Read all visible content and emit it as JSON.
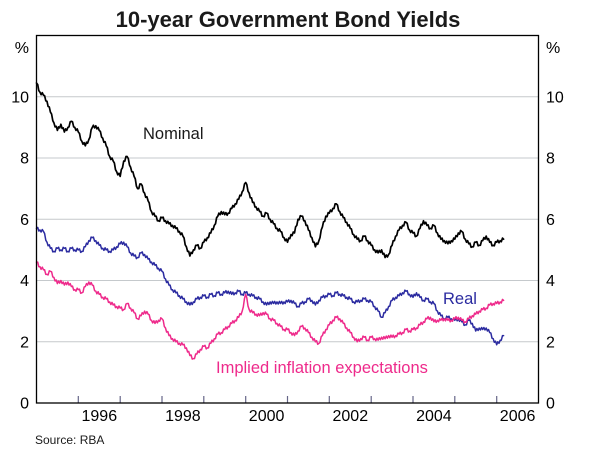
{
  "title": "10-year Government Bond Yields",
  "source": "Source: RBA",
  "axis": {
    "unit_left": "%",
    "unit_right": "%"
  },
  "colors": {
    "nominal": "#000000",
    "real": "#2b2ba0",
    "implied": "#ee2a8b",
    "grid": "#c5c9cc",
    "frame": "#000000",
    "tick": "#666688"
  },
  "chart_data": {
    "type": "line",
    "title": "10-year Government Bond Yields",
    "ylabel": "%",
    "ylim": [
      0,
      12
    ],
    "yticks": [
      0,
      2,
      4,
      6,
      8,
      10
    ],
    "xlim": [
      1995,
      2007
    ],
    "xtick_years": [
      1996,
      1997,
      1998,
      1999,
      2000,
      2001,
      2002,
      2003,
      2004,
      2005,
      2006
    ],
    "xtick_label_years": [
      1996,
      1998,
      2000,
      2002,
      2004,
      2006
    ],
    "xtick_labels": [
      "1996",
      "1998",
      "2000",
      "2002",
      "2004",
      "2006"
    ],
    "grid": true,
    "legend": "inline-labels",
    "x_start": 1995.0,
    "x_step": 0.0833333,
    "series": [
      {
        "name": "Nominal",
        "color": "#000000",
        "values": [
          10.45,
          10.15,
          10.05,
          9.85,
          9.5,
          9.15,
          8.9,
          9.1,
          8.85,
          9.0,
          9.2,
          9.0,
          8.85,
          8.55,
          8.4,
          8.6,
          9.0,
          9.05,
          8.9,
          8.65,
          8.4,
          8.05,
          7.9,
          7.55,
          7.4,
          7.9,
          8.05,
          7.7,
          7.4,
          7.0,
          7.15,
          6.85,
          6.6,
          6.25,
          6.1,
          5.95,
          6.05,
          5.95,
          5.85,
          5.8,
          5.7,
          5.6,
          5.45,
          5.1,
          4.8,
          5.0,
          5.15,
          5.05,
          5.25,
          5.4,
          5.55,
          5.8,
          6.1,
          6.25,
          6.15,
          6.2,
          6.35,
          6.5,
          6.65,
          6.9,
          7.2,
          6.85,
          6.55,
          6.4,
          6.25,
          6.1,
          6.2,
          6.0,
          5.85,
          5.7,
          5.6,
          5.4,
          5.25,
          5.5,
          5.55,
          6.0,
          6.1,
          5.95,
          5.65,
          5.4,
          5.1,
          5.3,
          5.75,
          6.1,
          6.2,
          6.35,
          6.5,
          6.25,
          6.05,
          5.9,
          5.7,
          5.5,
          5.35,
          5.3,
          5.45,
          5.3,
          5.15,
          5.0,
          4.9,
          5.0,
          4.75,
          4.85,
          5.15,
          5.45,
          5.65,
          5.8,
          5.9,
          5.65,
          5.55,
          5.45,
          5.7,
          5.95,
          5.8,
          5.7,
          5.8,
          5.55,
          5.35,
          5.3,
          5.2,
          5.3,
          5.35,
          5.55,
          5.6,
          5.35,
          5.2,
          5.1,
          5.25,
          5.15,
          5.3,
          5.45,
          5.25,
          5.15,
          5.25,
          5.3,
          5.35
        ]
      },
      {
        "name": "Real",
        "color": "#2b2ba0",
        "values": [
          5.7,
          5.65,
          5.6,
          5.25,
          5.05,
          4.95,
          5.05,
          5.0,
          5.05,
          4.95,
          5.05,
          5.0,
          5.0,
          4.95,
          5.1,
          5.3,
          5.4,
          5.3,
          5.15,
          5.05,
          5.0,
          4.95,
          5.0,
          5.1,
          5.2,
          5.25,
          5.1,
          4.9,
          4.8,
          4.75,
          4.9,
          4.85,
          4.7,
          4.6,
          4.5,
          4.4,
          4.3,
          4.05,
          3.85,
          3.7,
          3.6,
          3.5,
          3.4,
          3.3,
          3.2,
          3.3,
          3.4,
          3.45,
          3.5,
          3.45,
          3.55,
          3.5,
          3.6,
          3.55,
          3.6,
          3.65,
          3.55,
          3.6,
          3.65,
          3.55,
          3.6,
          3.55,
          3.5,
          3.45,
          3.4,
          3.3,
          3.2,
          3.3,
          3.25,
          3.3,
          3.25,
          3.3,
          3.3,
          3.35,
          3.25,
          3.15,
          3.25,
          3.3,
          3.4,
          3.35,
          3.2,
          3.35,
          3.45,
          3.5,
          3.55,
          3.5,
          3.6,
          3.55,
          3.5,
          3.45,
          3.4,
          3.3,
          3.3,
          3.35,
          3.4,
          3.35,
          3.3,
          3.15,
          3.0,
          2.8,
          2.95,
          3.15,
          3.35,
          3.45,
          3.5,
          3.6,
          3.65,
          3.55,
          3.45,
          3.6,
          3.45,
          3.35,
          3.4,
          3.3,
          3.25,
          3.0,
          2.85,
          2.75,
          2.8,
          2.75,
          2.7,
          2.75,
          2.65,
          2.55,
          2.7,
          2.6,
          2.35,
          2.45,
          2.4,
          2.45,
          2.3,
          2.1,
          1.9,
          2.05,
          2.2
        ]
      },
      {
        "name": "Implied inflation expectations",
        "color": "#ee2a8b",
        "values": [
          4.6,
          4.45,
          4.35,
          4.2,
          4.3,
          4.1,
          3.9,
          4.0,
          3.85,
          3.95,
          3.8,
          3.7,
          3.7,
          3.6,
          3.8,
          3.95,
          3.85,
          3.65,
          3.55,
          3.45,
          3.4,
          3.3,
          3.2,
          3.15,
          3.1,
          3.05,
          3.25,
          3.1,
          2.95,
          2.75,
          2.85,
          3.0,
          2.9,
          2.7,
          2.6,
          2.7,
          2.75,
          2.45,
          2.2,
          2.1,
          2.0,
          1.95,
          1.9,
          1.8,
          1.55,
          1.45,
          1.6,
          1.75,
          1.85,
          1.8,
          1.95,
          2.1,
          2.25,
          2.3,
          2.4,
          2.5,
          2.6,
          2.7,
          2.8,
          3.0,
          3.55,
          3.05,
          2.95,
          2.9,
          2.85,
          2.95,
          2.9,
          2.75,
          2.7,
          2.6,
          2.5,
          2.4,
          2.4,
          2.3,
          2.2,
          2.35,
          2.5,
          2.45,
          2.3,
          2.15,
          2.0,
          1.95,
          2.2,
          2.4,
          2.55,
          2.7,
          2.8,
          2.75,
          2.6,
          2.45,
          2.3,
          2.15,
          2.0,
          2.1,
          2.15,
          2.05,
          2.15,
          2.1,
          2.05,
          2.15,
          2.1,
          2.2,
          2.15,
          2.2,
          2.25,
          2.3,
          2.4,
          2.35,
          2.4,
          2.45,
          2.55,
          2.65,
          2.75,
          2.8,
          2.65,
          2.7,
          2.7,
          2.75,
          2.7,
          2.7,
          2.75,
          2.8,
          2.7,
          2.65,
          2.75,
          2.85,
          2.9,
          3.0,
          3.05,
          3.1,
          3.2,
          3.25,
          3.25,
          3.3,
          3.35
        ]
      }
    ]
  }
}
